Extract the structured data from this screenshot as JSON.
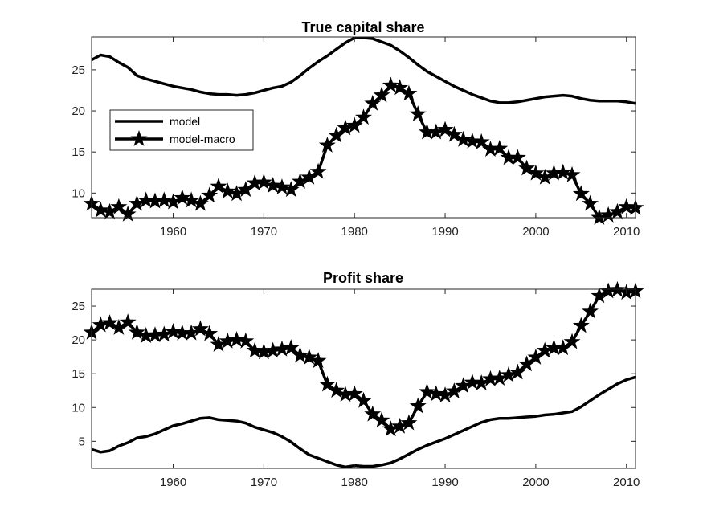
{
  "chart_data": [
    {
      "type": "line",
      "title": "True capital share",
      "xlabel": "",
      "ylabel": "",
      "xlim": [
        1951,
        2011
      ],
      "ylim": [
        7,
        29
      ],
      "xticks": [
        1960,
        1970,
        1980,
        1990,
        2000,
        2010
      ],
      "yticks": [
        10,
        15,
        20,
        25
      ],
      "grid": false,
      "legend": {
        "placement": "left",
        "entries": [
          "model",
          "model-macro"
        ]
      },
      "series": [
        {
          "name": "model",
          "marker": "none",
          "x": [
            1951,
            1952,
            1953,
            1954,
            1955,
            1956,
            1957,
            1958,
            1959,
            1960,
            1961,
            1962,
            1963,
            1964,
            1965,
            1966,
            1967,
            1968,
            1969,
            1970,
            1971,
            1972,
            1973,
            1974,
            1975,
            1976,
            1977,
            1978,
            1979,
            1980,
            1981,
            1982,
            1983,
            1984,
            1985,
            1986,
            1987,
            1988,
            1989,
            1990,
            1991,
            1992,
            1993,
            1994,
            1995,
            1996,
            1997,
            1998,
            1999,
            2000,
            2001,
            2002,
            2003,
            2004,
            2005,
            2006,
            2007,
            2008,
            2009,
            2010,
            2011
          ],
          "values": [
            26.2,
            26.8,
            26.6,
            25.9,
            25.3,
            24.3,
            23.9,
            23.6,
            23.3,
            23.0,
            22.8,
            22.6,
            22.3,
            22.1,
            22.0,
            22.0,
            21.9,
            22.0,
            22.2,
            22.5,
            22.8,
            23.0,
            23.5,
            24.3,
            25.2,
            26.0,
            26.7,
            27.5,
            28.3,
            28.9,
            28.9,
            28.8,
            28.4,
            28.0,
            27.3,
            26.5,
            25.6,
            24.8,
            24.2,
            23.6,
            23.0,
            22.5,
            22.0,
            21.6,
            21.2,
            21.0,
            21.0,
            21.1,
            21.3,
            21.5,
            21.7,
            21.8,
            21.9,
            21.8,
            21.5,
            21.3,
            21.2,
            21.2,
            21.2,
            21.1,
            20.9
          ]
        },
        {
          "name": "model-macro",
          "marker": "star",
          "x": [
            1951,
            1952,
            1953,
            1954,
            1955,
            1956,
            1957,
            1958,
            1959,
            1960,
            1961,
            1962,
            1963,
            1964,
            1965,
            1966,
            1967,
            1968,
            1969,
            1970,
            1971,
            1972,
            1973,
            1974,
            1975,
            1976,
            1977,
            1978,
            1979,
            1980,
            1981,
            1982,
            1983,
            1984,
            1985,
            1986,
            1987,
            1988,
            1989,
            1990,
            1991,
            1992,
            1993,
            1994,
            1995,
            1996,
            1997,
            1998,
            1999,
            2000,
            2001,
            2002,
            2003,
            2004,
            2005,
            2006,
            2007,
            2008,
            2009,
            2010,
            2011
          ],
          "values": [
            8.7,
            7.9,
            7.7,
            8.3,
            7.4,
            8.7,
            9.1,
            9.0,
            9.1,
            8.9,
            9.4,
            9.1,
            8.7,
            9.7,
            10.8,
            10.2,
            9.9,
            10.4,
            11.2,
            11.3,
            10.9,
            10.7,
            10.4,
            11.4,
            11.9,
            12.6,
            15.8,
            17.0,
            17.9,
            18.2,
            19.2,
            20.9,
            21.9,
            23.1,
            22.8,
            22.1,
            19.6,
            17.4,
            17.4,
            17.7,
            17.1,
            16.5,
            16.3,
            16.2,
            15.3,
            15.4,
            14.3,
            14.3,
            13.0,
            12.4,
            11.9,
            12.4,
            12.5,
            12.2,
            9.9,
            8.7,
            7.0,
            7.3,
            7.7,
            8.3,
            8.2
          ]
        }
      ]
    },
    {
      "type": "line",
      "title": "Profit share",
      "xlabel": "",
      "ylabel": "",
      "xlim": [
        1951,
        2011
      ],
      "ylim": [
        1,
        27.5
      ],
      "xticks": [
        1960,
        1970,
        1980,
        1990,
        2000,
        2010
      ],
      "yticks": [
        5,
        10,
        15,
        20,
        25
      ],
      "grid": false,
      "series": [
        {
          "name": "model",
          "marker": "none",
          "x": [
            1951,
            1952,
            1953,
            1954,
            1955,
            1956,
            1957,
            1958,
            1959,
            1960,
            1961,
            1962,
            1963,
            1964,
            1965,
            1966,
            1967,
            1968,
            1969,
            1970,
            1971,
            1972,
            1973,
            1974,
            1975,
            1976,
            1977,
            1978,
            1979,
            1980,
            1981,
            1982,
            1983,
            1984,
            1985,
            1986,
            1987,
            1988,
            1989,
            1990,
            1991,
            1992,
            1993,
            1994,
            1995,
            1996,
            1997,
            1998,
            1999,
            2000,
            2001,
            2002,
            2003,
            2004,
            2005,
            2006,
            2007,
            2008,
            2009,
            2010,
            2011
          ],
          "values": [
            3.8,
            3.4,
            3.6,
            4.3,
            4.8,
            5.5,
            5.7,
            6.1,
            6.7,
            7.3,
            7.6,
            8.0,
            8.4,
            8.5,
            8.2,
            8.1,
            8.0,
            7.7,
            7.1,
            6.7,
            6.3,
            5.7,
            4.9,
            3.9,
            3.0,
            2.5,
            2.0,
            1.5,
            1.2,
            1.4,
            1.3,
            1.3,
            1.5,
            1.8,
            2.4,
            3.1,
            3.8,
            4.4,
            4.9,
            5.4,
            6.0,
            6.6,
            7.2,
            7.8,
            8.2,
            8.4,
            8.4,
            8.5,
            8.6,
            8.7,
            8.9,
            9.0,
            9.2,
            9.4,
            10.1,
            11.0,
            11.9,
            12.7,
            13.5,
            14.1,
            14.5
          ]
        },
        {
          "name": "model-macro",
          "marker": "star",
          "x": [
            1951,
            1952,
            1953,
            1954,
            1955,
            1956,
            1957,
            1958,
            1959,
            1960,
            1961,
            1962,
            1963,
            1964,
            1965,
            1966,
            1967,
            1968,
            1969,
            1970,
            1971,
            1972,
            1973,
            1974,
            1975,
            1976,
            1977,
            1978,
            1979,
            1980,
            1981,
            1982,
            1983,
            1984,
            1985,
            1986,
            1987,
            1988,
            1989,
            1990,
            1991,
            1992,
            1993,
            1994,
            1995,
            1996,
            1997,
            1998,
            1999,
            2000,
            2001,
            2002,
            2003,
            2004,
            2005,
            2006,
            2007,
            2008,
            2009,
            2010,
            2011
          ],
          "values": [
            21.1,
            22.2,
            22.5,
            21.8,
            22.6,
            21.1,
            20.6,
            20.7,
            20.8,
            21.2,
            21.0,
            21.0,
            21.6,
            20.9,
            19.3,
            19.8,
            20.0,
            19.8,
            18.4,
            18.2,
            18.4,
            18.6,
            18.8,
            17.7,
            17.4,
            16.9,
            13.4,
            12.5,
            11.9,
            12.0,
            11.0,
            9.0,
            8.1,
            6.8,
            7.2,
            7.7,
            10.2,
            12.3,
            12.0,
            11.8,
            12.4,
            13.2,
            13.7,
            13.6,
            14.2,
            14.3,
            14.8,
            15.2,
            16.4,
            17.4,
            18.4,
            18.8,
            18.8,
            19.7,
            22.1,
            24.2,
            26.5,
            27.2,
            27.4,
            27.0,
            27.2
          ]
        }
      ]
    }
  ]
}
